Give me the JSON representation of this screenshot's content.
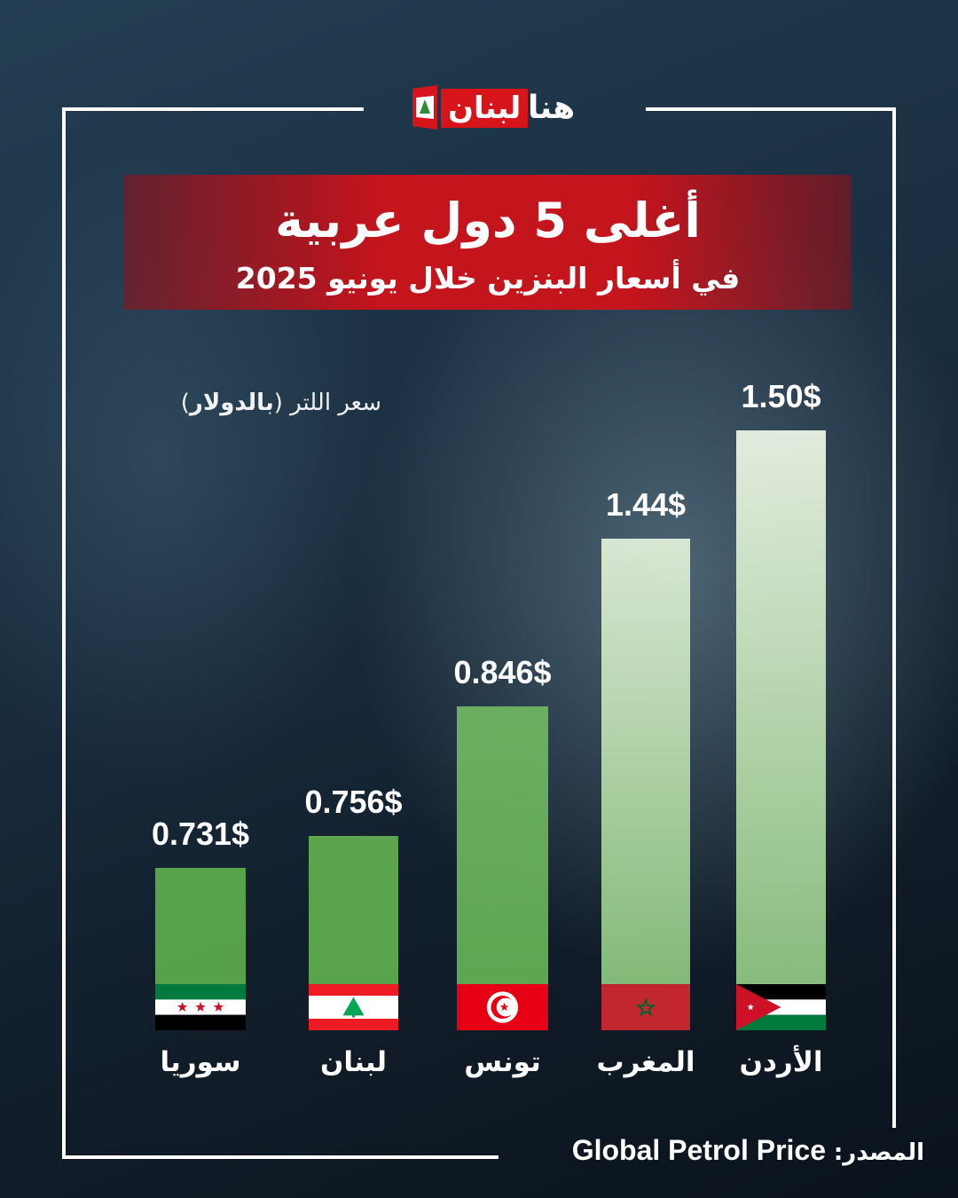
{
  "logo": {
    "text_red": "لبنان",
    "text_white": "هنا"
  },
  "header": {
    "title": "أغلى 5 دول عربية",
    "subtitle": "في أسعار البنزين خلال يونيو 2025"
  },
  "unit_label": {
    "prefix": "سعر اللتر (",
    "bold": "بالدولار",
    "suffix": ")"
  },
  "source": {
    "label": "المصدر:",
    "value": "Global Petrol Price"
  },
  "colors": {
    "bar_dark": "#5aa84a",
    "bar_light": "#e9f2e3",
    "banner_red": "#c4141c"
  },
  "chart_data": {
    "type": "bar",
    "categories": [
      "سوريا",
      "لبنان",
      "تونس",
      "المغرب",
      "الأردن"
    ],
    "values": [
      0.731,
      0.756,
      0.846,
      1.44,
      1.5
    ],
    "value_labels": [
      "0.731$",
      "0.756$",
      "0.846$",
      "1.44$",
      "1.50$"
    ],
    "flags": [
      "syria-flag",
      "lebanon-flag",
      "tunisia-flag",
      "morocco-flag",
      "jordan-flag"
    ],
    "title": "أغلى 5 دول عربية",
    "xlabel": "",
    "ylabel": "",
    "grid": false,
    "legend": "none"
  }
}
